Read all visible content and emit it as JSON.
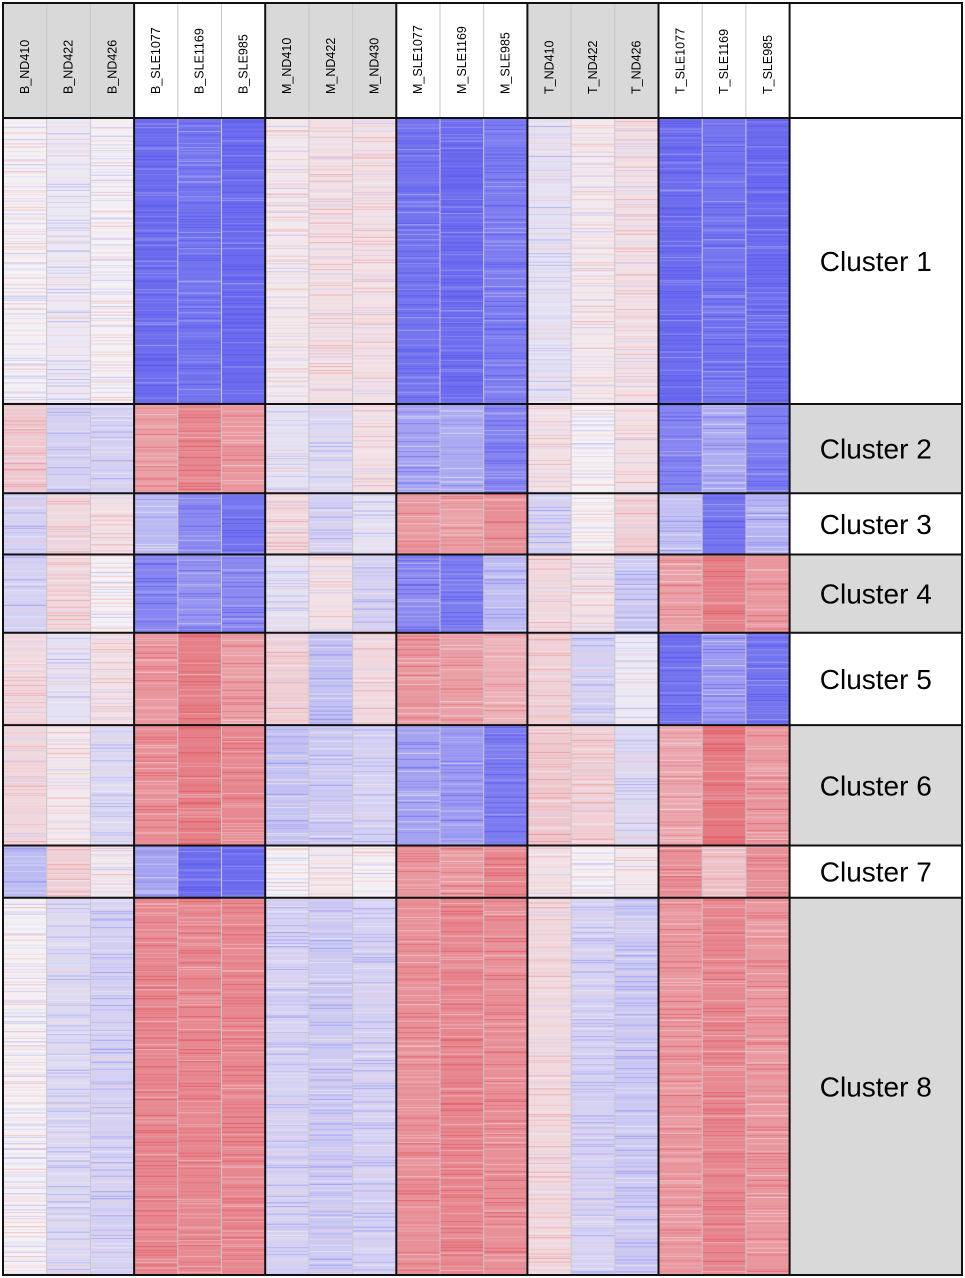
{
  "chart_data": {
    "type": "heatmap",
    "title": "",
    "columns": [
      "B_ND410",
      "B_ND422",
      "B_ND426",
      "B_SLE1077",
      "B_SLE1169",
      "B_SLE985",
      "M_ND410",
      "M_ND422",
      "M_ND430",
      "M_SLE1077",
      "M_SLE1169",
      "M_SLE985",
      "T_ND410",
      "T_ND422",
      "T_ND426",
      "T_SLE1077",
      "T_SLE1169",
      "T_SLE985"
    ],
    "column_groups": [
      {
        "columns": [
          "B_ND410",
          "B_ND422",
          "B_ND426"
        ],
        "header_shade": "gray"
      },
      {
        "columns": [
          "B_SLE1077",
          "B_SLE1169",
          "B_SLE985"
        ],
        "header_shade": "white"
      },
      {
        "columns": [
          "M_ND410",
          "M_ND422",
          "M_ND430"
        ],
        "header_shade": "gray"
      },
      {
        "columns": [
          "M_SLE1077",
          "M_SLE1169",
          "M_SLE985"
        ],
        "header_shade": "white"
      },
      {
        "columns": [
          "T_ND410",
          "T_ND422",
          "T_ND426"
        ],
        "header_shade": "gray"
      },
      {
        "columns": [
          "T_SLE1077",
          "T_SLE1169",
          "T_SLE985"
        ],
        "header_shade": "white"
      }
    ],
    "row_clusters": [
      {
        "label": "Cluster 1",
        "relative_size": 285,
        "label_shade": "white"
      },
      {
        "label": "Cluster 2",
        "relative_size": 89,
        "label_shade": "gray"
      },
      {
        "label": "Cluster 3",
        "relative_size": 61,
        "label_shade": "white"
      },
      {
        "label": "Cluster 4",
        "relative_size": 78,
        "label_shade": "gray"
      },
      {
        "label": "Cluster 5",
        "relative_size": 92,
        "label_shade": "white"
      },
      {
        "label": "Cluster 6",
        "relative_size": 120,
        "label_shade": "gray"
      },
      {
        "label": "Cluster 7",
        "relative_size": 52,
        "label_shade": "white"
      },
      {
        "label": "Cluster 8",
        "relative_size": 376,
        "label_shade": "gray"
      }
    ],
    "color_scale": {
      "low": "#5555ee",
      "mid": "#f4f0f4",
      "high": "#e0505a"
    },
    "value_range": [
      -1,
      1
    ],
    "values": [
      [
        0.0,
        -0.05,
        0.0,
        -0.85,
        -0.8,
        -0.85,
        0.05,
        0.1,
        0.1,
        -0.8,
        -0.85,
        -0.75,
        -0.1,
        0.05,
        0.1,
        -0.85,
        -0.8,
        -0.85
      ],
      [
        0.25,
        -0.2,
        -0.2,
        0.5,
        0.65,
        0.55,
        -0.1,
        -0.15,
        0.1,
        -0.5,
        -0.45,
        -0.7,
        0.1,
        0.0,
        0.1,
        -0.7,
        -0.45,
        -0.75
      ],
      [
        -0.2,
        0.15,
        0.1,
        -0.35,
        -0.65,
        -0.8,
        0.15,
        -0.2,
        -0.1,
        0.55,
        0.5,
        0.6,
        -0.2,
        0.0,
        0.2,
        -0.3,
        -0.8,
        -0.4
      ],
      [
        -0.2,
        0.15,
        0.0,
        -0.7,
        -0.6,
        -0.65,
        -0.1,
        0.1,
        -0.2,
        -0.65,
        -0.75,
        -0.35,
        0.15,
        0.1,
        -0.25,
        0.5,
        0.7,
        0.55
      ],
      [
        0.15,
        -0.1,
        0.1,
        0.55,
        0.7,
        0.5,
        0.2,
        -0.3,
        0.15,
        0.55,
        0.5,
        0.4,
        0.2,
        -0.2,
        -0.05,
        -0.8,
        -0.55,
        -0.8
      ],
      [
        0.15,
        0.05,
        -0.15,
        0.6,
        0.7,
        0.65,
        -0.3,
        -0.25,
        -0.2,
        -0.5,
        -0.55,
        -0.75,
        0.25,
        0.2,
        -0.15,
        0.45,
        0.75,
        0.55
      ],
      [
        -0.35,
        0.2,
        0.05,
        -0.5,
        -0.85,
        -0.85,
        0.0,
        0.05,
        0.0,
        0.55,
        0.55,
        0.65,
        0.1,
        0.0,
        0.05,
        0.6,
        0.3,
        0.6
      ],
      [
        0.0,
        -0.15,
        -0.2,
        0.65,
        0.65,
        0.65,
        -0.2,
        -0.25,
        -0.2,
        0.6,
        0.65,
        0.6,
        0.15,
        -0.2,
        -0.25,
        0.55,
        0.65,
        0.55
      ]
    ]
  }
}
